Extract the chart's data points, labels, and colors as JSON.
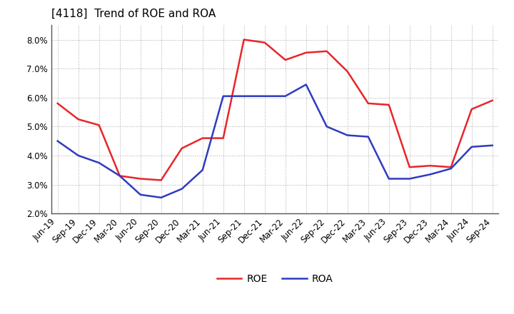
{
  "title": "[4118]  Trend of ROE and ROA",
  "labels": [
    "Jun-19",
    "Sep-19",
    "Dec-19",
    "Mar-20",
    "Jun-20",
    "Sep-20",
    "Dec-20",
    "Mar-21",
    "Jun-21",
    "Sep-21",
    "Dec-21",
    "Mar-22",
    "Jun-22",
    "Sep-22",
    "Dec-22",
    "Mar-23",
    "Jun-23",
    "Sep-23",
    "Dec-23",
    "Mar-24",
    "Jun-24",
    "Sep-24"
  ],
  "ROE": [
    5.8,
    5.25,
    5.05,
    3.3,
    3.2,
    3.15,
    4.25,
    4.6,
    4.6,
    8.0,
    7.9,
    7.3,
    7.55,
    7.6,
    6.9,
    5.8,
    5.75,
    3.6,
    3.65,
    3.6,
    5.6,
    5.9
  ],
  "ROA": [
    4.5,
    4.0,
    3.75,
    3.3,
    2.65,
    2.55,
    2.85,
    3.5,
    6.05,
    6.05,
    6.05,
    6.05,
    6.45,
    5.0,
    4.7,
    4.65,
    3.2,
    3.2,
    3.35,
    3.55,
    4.3,
    4.35
  ],
  "ROE_color": "#e8252a",
  "ROA_color": "#2e3cbe",
  "background_color": "#ffffff",
  "grid_color": "#aaaaaa",
  "ylim": [
    2.0,
    8.5
  ],
  "yticks": [
    2.0,
    3.0,
    4.0,
    5.0,
    6.0,
    7.0,
    8.0
  ],
  "title_fontsize": 11,
  "title_fontweight": "normal",
  "legend_fontsize": 10,
  "tick_fontsize": 8.5
}
